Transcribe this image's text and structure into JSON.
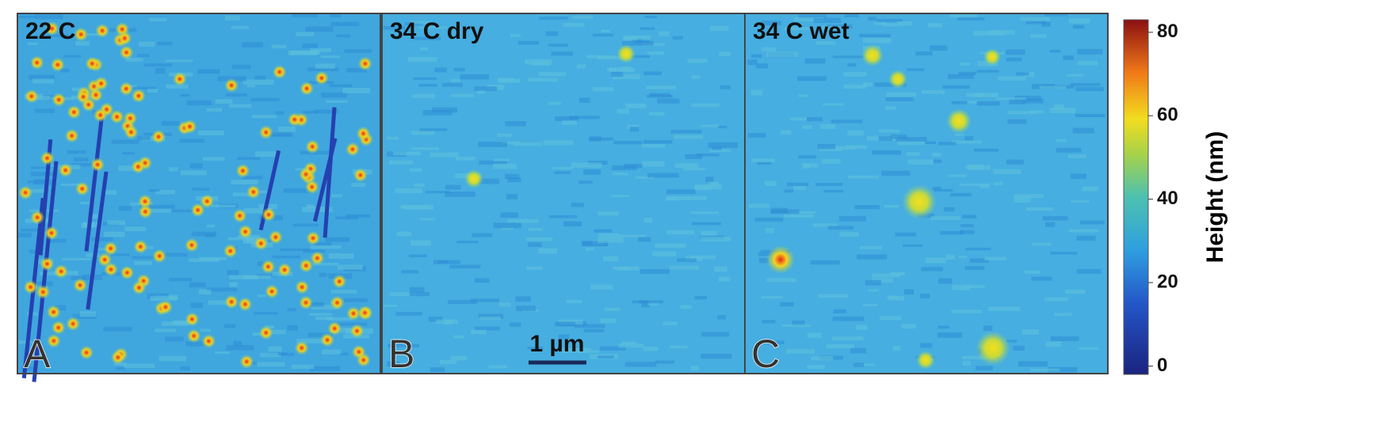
{
  "panels": [
    {
      "letter": "A",
      "title": "22 C"
    },
    {
      "letter": "B",
      "title": "34 C dry"
    },
    {
      "letter": "C",
      "title": "34 C wet"
    }
  ],
  "scale_bar": {
    "label": "1 µm"
  },
  "colorbar": {
    "label": "Height (nm)",
    "limits": [
      -2,
      83
    ],
    "ticks": [
      0,
      20,
      40,
      60,
      80
    ]
  }
}
